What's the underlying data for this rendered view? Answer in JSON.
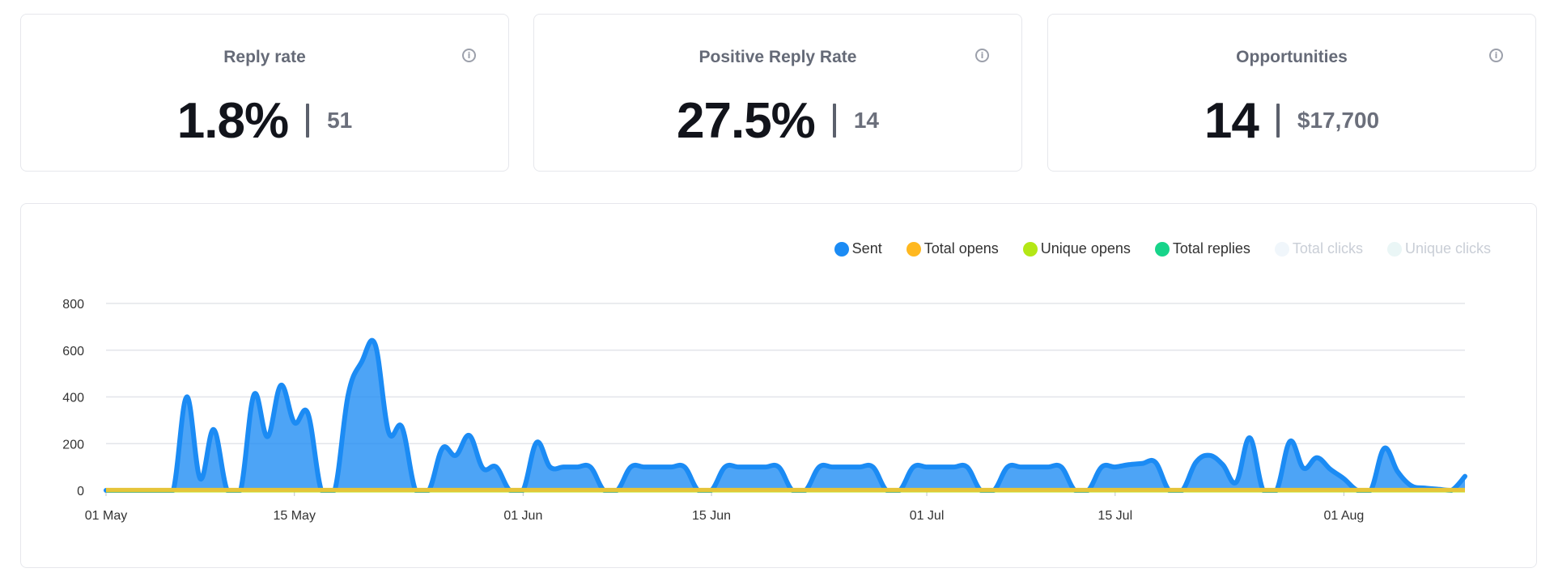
{
  "cards": [
    {
      "title": "Reply rate",
      "value": "1.8%",
      "secondary": "51"
    },
    {
      "title": "Positive Reply Rate",
      "value": "27.5%",
      "secondary": "14"
    },
    {
      "title": "Opportunities",
      "value": "14",
      "secondary": "$17,700"
    }
  ],
  "legend": [
    {
      "label": "Sent",
      "color": "#1b8bf4",
      "active": true
    },
    {
      "label": "Total opens",
      "color": "#ffb81f",
      "active": true
    },
    {
      "label": "Unique opens",
      "color": "#b4e716",
      "active": true
    },
    {
      "label": "Total replies",
      "color": "#17d48a",
      "active": true
    },
    {
      "label": "Total clicks",
      "color": "#f0f6fb",
      "active": false
    },
    {
      "label": "Unique clicks",
      "color": "#eaf6f6",
      "active": false
    }
  ],
  "chart_data": {
    "type": "area",
    "x_start": "2024-05-01",
    "x_end": "2024-08-09",
    "x_ticks": [
      {
        "label": "01 May",
        "date": "2024-05-01"
      },
      {
        "label": "15 May",
        "date": "2024-05-15"
      },
      {
        "label": "01 Jun",
        "date": "2024-06-01"
      },
      {
        "label": "15 Jun",
        "date": "2024-06-15"
      },
      {
        "label": "01 Jul",
        "date": "2024-07-01"
      },
      {
        "label": "15 Jul",
        "date": "2024-07-15"
      },
      {
        "label": "01 Aug",
        "date": "2024-08-01"
      }
    ],
    "y_ticks": [
      0,
      200,
      400,
      600,
      800
    ],
    "ylim": [
      0,
      800
    ],
    "grid": true,
    "legend_position": "top-right",
    "series": [
      {
        "name": "Sent",
        "color": "#1b8bf4",
        "points": [
          [
            "2024-05-01",
            0
          ],
          [
            "2024-05-02",
            0
          ],
          [
            "2024-05-03",
            0
          ],
          [
            "2024-05-04",
            0
          ],
          [
            "2024-05-05",
            0
          ],
          [
            "2024-05-06",
            0
          ],
          [
            "2024-05-07",
            400
          ],
          [
            "2024-05-08",
            50
          ],
          [
            "2024-05-09",
            260
          ],
          [
            "2024-05-10",
            0
          ],
          [
            "2024-05-11",
            0
          ],
          [
            "2024-05-12",
            410
          ],
          [
            "2024-05-13",
            230
          ],
          [
            "2024-05-14",
            450
          ],
          [
            "2024-05-15",
            290
          ],
          [
            "2024-05-16",
            330
          ],
          [
            "2024-05-17",
            0
          ],
          [
            "2024-05-18",
            0
          ],
          [
            "2024-05-19",
            410
          ],
          [
            "2024-05-20",
            550
          ],
          [
            "2024-05-21",
            625
          ],
          [
            "2024-05-22",
            250
          ],
          [
            "2024-05-23",
            270
          ],
          [
            "2024-05-24",
            0
          ],
          [
            "2024-05-25",
            0
          ],
          [
            "2024-05-26",
            180
          ],
          [
            "2024-05-27",
            150
          ],
          [
            "2024-05-28",
            235
          ],
          [
            "2024-05-29",
            95
          ],
          [
            "2024-05-30",
            100
          ],
          [
            "2024-05-31",
            0
          ],
          [
            "2024-06-01",
            0
          ],
          [
            "2024-06-02",
            205
          ],
          [
            "2024-06-03",
            100
          ],
          [
            "2024-06-04",
            100
          ],
          [
            "2024-06-05",
            100
          ],
          [
            "2024-06-06",
            100
          ],
          [
            "2024-06-07",
            0
          ],
          [
            "2024-06-08",
            0
          ],
          [
            "2024-06-09",
            100
          ],
          [
            "2024-06-10",
            100
          ],
          [
            "2024-06-11",
            100
          ],
          [
            "2024-06-12",
            100
          ],
          [
            "2024-06-13",
            100
          ],
          [
            "2024-06-14",
            0
          ],
          [
            "2024-06-15",
            0
          ],
          [
            "2024-06-16",
            100
          ],
          [
            "2024-06-17",
            100
          ],
          [
            "2024-06-18",
            100
          ],
          [
            "2024-06-19",
            100
          ],
          [
            "2024-06-20",
            100
          ],
          [
            "2024-06-21",
            0
          ],
          [
            "2024-06-22",
            0
          ],
          [
            "2024-06-23",
            100
          ],
          [
            "2024-06-24",
            100
          ],
          [
            "2024-06-25",
            100
          ],
          [
            "2024-06-26",
            100
          ],
          [
            "2024-06-27",
            100
          ],
          [
            "2024-06-28",
            0
          ],
          [
            "2024-06-29",
            0
          ],
          [
            "2024-06-30",
            100
          ],
          [
            "2024-07-01",
            100
          ],
          [
            "2024-07-02",
            100
          ],
          [
            "2024-07-03",
            100
          ],
          [
            "2024-07-04",
            100
          ],
          [
            "2024-07-05",
            0
          ],
          [
            "2024-07-06",
            0
          ],
          [
            "2024-07-07",
            100
          ],
          [
            "2024-07-08",
            100
          ],
          [
            "2024-07-09",
            100
          ],
          [
            "2024-07-10",
            100
          ],
          [
            "2024-07-11",
            100
          ],
          [
            "2024-07-12",
            0
          ],
          [
            "2024-07-13",
            0
          ],
          [
            "2024-07-14",
            100
          ],
          [
            "2024-07-15",
            100
          ],
          [
            "2024-07-16",
            110
          ],
          [
            "2024-07-17",
            115
          ],
          [
            "2024-07-18",
            120
          ],
          [
            "2024-07-19",
            0
          ],
          [
            "2024-07-20",
            0
          ],
          [
            "2024-07-21",
            120
          ],
          [
            "2024-07-22",
            150
          ],
          [
            "2024-07-23",
            110
          ],
          [
            "2024-07-24",
            35
          ],
          [
            "2024-07-25",
            225
          ],
          [
            "2024-07-26",
            0
          ],
          [
            "2024-07-27",
            0
          ],
          [
            "2024-07-28",
            210
          ],
          [
            "2024-07-29",
            95
          ],
          [
            "2024-07-30",
            140
          ],
          [
            "2024-07-31",
            90
          ],
          [
            "2024-08-01",
            50
          ],
          [
            "2024-08-02",
            0
          ],
          [
            "2024-08-03",
            0
          ],
          [
            "2024-08-04",
            180
          ],
          [
            "2024-08-05",
            80
          ],
          [
            "2024-08-06",
            20
          ],
          [
            "2024-08-07",
            10
          ],
          [
            "2024-08-08",
            5
          ],
          [
            "2024-08-09",
            0
          ],
          [
            "2024-08-10",
            60
          ]
        ]
      },
      {
        "name": "Total opens",
        "color": "#ffb81f",
        "points": [
          [
            "2024-05-01",
            0
          ],
          [
            "2024-08-10",
            0
          ]
        ]
      },
      {
        "name": "Unique opens",
        "color": "#b4e716",
        "points": [
          [
            "2024-05-01",
            0
          ],
          [
            "2024-08-10",
            0
          ]
        ]
      },
      {
        "name": "Total replies",
        "color": "#17d48a",
        "points": [
          [
            "2024-05-01",
            2
          ],
          [
            "2024-08-10",
            2
          ]
        ]
      }
    ]
  }
}
